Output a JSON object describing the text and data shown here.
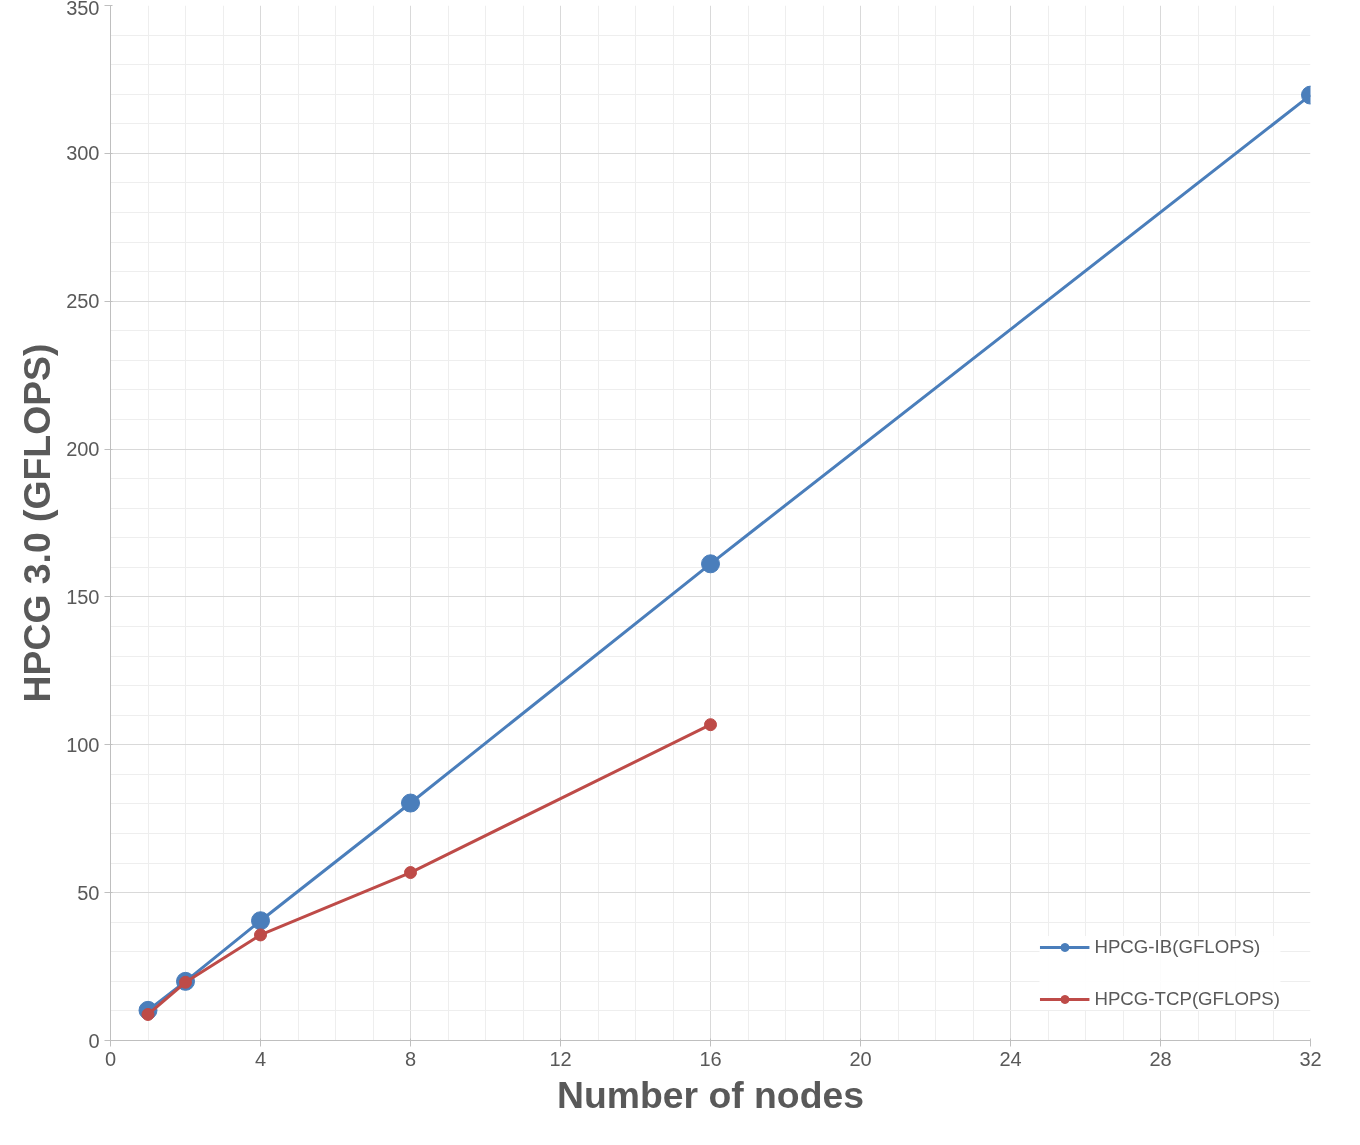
{
  "chart_data": {
    "type": "line",
    "xlabel": "Number of nodes",
    "ylabel": "HPCG 3.0 (GFLOPS)",
    "xlim": [
      0,
      32
    ],
    "xticks": [
      0,
      4,
      8,
      12,
      16,
      20,
      24,
      28,
      32
    ],
    "ylim": [
      0,
      350
    ],
    "yticks": [
      0,
      50,
      100,
      150,
      200,
      250,
      300,
      350
    ],
    "grid": true,
    "legend": "bottom right",
    "marker": "circle",
    "line_style": "solid",
    "series": [
      {
        "name": "HPCG-IB(GFLOPS)",
        "color": "#4a7ebb",
        "x": [
          1,
          2,
          4,
          8,
          16,
          32
        ],
        "values": [
          10.2,
          20,
          40.5,
          80.3,
          161.2,
          319.7
        ]
      },
      {
        "name": "HPCG-TCP(GFLOPS)",
        "color": "#be4b48",
        "x": [
          1,
          2,
          4,
          8,
          16
        ],
        "values": [
          8.8,
          19.7,
          35.7,
          56.8,
          106.8
        ]
      }
    ]
  }
}
